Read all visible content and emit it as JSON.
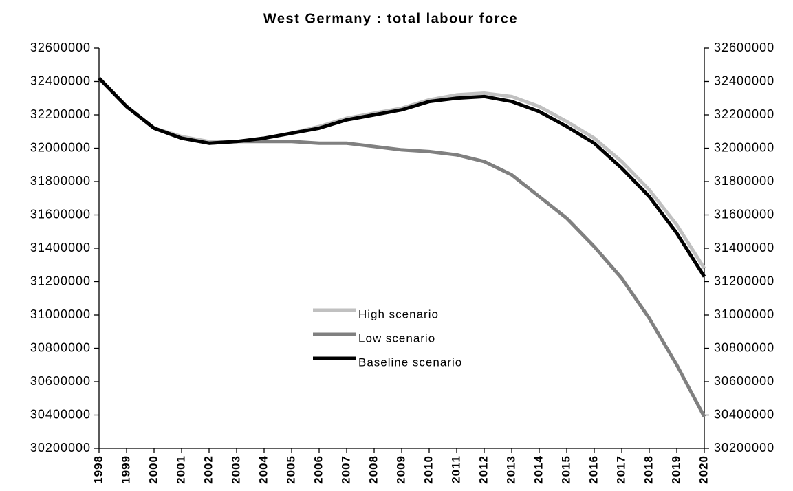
{
  "chart_data": {
    "type": "line",
    "title": "West Germany : total labour force",
    "categories": [
      "1998",
      "1999",
      "2000",
      "2001",
      "2002",
      "2003",
      "2004",
      "2005",
      "2006",
      "2007",
      "2008",
      "2009",
      "2010",
      "2011",
      "2012",
      "2013",
      "2014",
      "2015",
      "2016",
      "2017",
      "2018",
      "2019",
      "2020"
    ],
    "series": [
      {
        "name": "High scenario",
        "color": "#c0c0c0",
        "values": [
          32420000,
          32250000,
          32120000,
          32070000,
          32040000,
          32040000,
          32060000,
          32090000,
          32130000,
          32180000,
          32210000,
          32240000,
          32290000,
          32320000,
          32330000,
          32310000,
          32250000,
          32160000,
          32060000,
          31920000,
          31750000,
          31540000,
          31280000
        ]
      },
      {
        "name": "Low scenario",
        "color": "#808080",
        "values": [
          32420000,
          32250000,
          32120000,
          32060000,
          32030000,
          32040000,
          32040000,
          32040000,
          32030000,
          32030000,
          32010000,
          31990000,
          31980000,
          31960000,
          31920000,
          31840000,
          31710000,
          31580000,
          31410000,
          31220000,
          30980000,
          30700000,
          30390000
        ]
      },
      {
        "name": "Baseline scenario",
        "color": "#000000",
        "values": [
          32420000,
          32250000,
          32120000,
          32060000,
          32030000,
          32040000,
          32060000,
          32090000,
          32120000,
          32170000,
          32200000,
          32230000,
          32280000,
          32300000,
          32310000,
          32280000,
          32220000,
          32130000,
          32030000,
          31880000,
          31710000,
          31490000,
          31230000
        ]
      }
    ],
    "ylim": [
      30200000,
      32600000
    ],
    "yticks": [
      30200000,
      30400000,
      30600000,
      30800000,
      31000000,
      31200000,
      31400000,
      31600000,
      31800000,
      32000000,
      32200000,
      32400000,
      32600000
    ],
    "y2lim": [
      30200000,
      32600000
    ],
    "y2ticks": [
      30200000,
      30400000,
      30600000,
      30800000,
      31000000,
      31200000,
      31400000,
      31600000,
      31800000,
      32000000,
      32200000,
      32400000,
      32600000
    ],
    "legend": "center",
    "grid": false
  }
}
